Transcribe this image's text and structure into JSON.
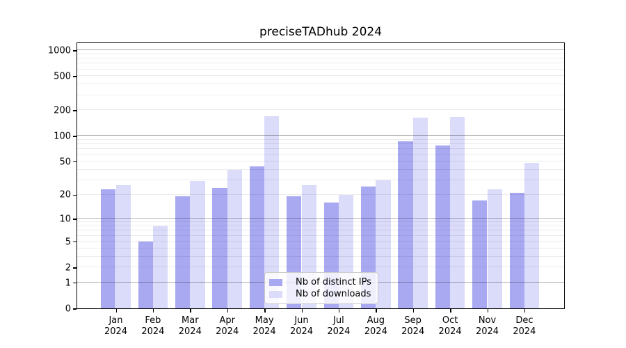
{
  "title": "preciseTADhub 2024",
  "chart_data": {
    "type": "bar",
    "title": "preciseTADhub 2024",
    "categories": [
      "Jan",
      "Feb",
      "Mar",
      "Apr",
      "May",
      "Jun",
      "Jul",
      "Aug",
      "Sep",
      "Oct",
      "Nov",
      "Dec"
    ],
    "category_year": "2024",
    "series": [
      {
        "name": "Nb of distinct IPs",
        "color": "#a9a9f2",
        "values": [
          23,
          5,
          19,
          24,
          44,
          19,
          16,
          25,
          86,
          78,
          17,
          21
        ]
      },
      {
        "name": "Nb of downloads",
        "color": "#dbdbfa",
        "values": [
          26,
          8,
          29,
          40,
          170,
          26,
          20,
          30,
          165,
          167,
          23,
          48
        ]
      }
    ],
    "y_axis": {
      "scale": "log1p",
      "tick_values": [
        0,
        1,
        2,
        5,
        10,
        20,
        50,
        100,
        200,
        500,
        1000
      ],
      "major_grid_values": [
        1,
        10,
        100,
        1000
      ],
      "minor_grid_values": [
        2,
        3,
        4,
        5,
        6,
        7,
        8,
        9,
        20,
        30,
        40,
        50,
        60,
        70,
        80,
        90,
        200,
        300,
        400,
        500,
        600,
        700,
        800,
        900
      ],
      "ylim": [
        0,
        1250
      ],
      "grid": true
    },
    "legend": {
      "entries": [
        "Nb of distinct IPs",
        "Nb of downloads"
      ],
      "position": "lower center"
    }
  }
}
